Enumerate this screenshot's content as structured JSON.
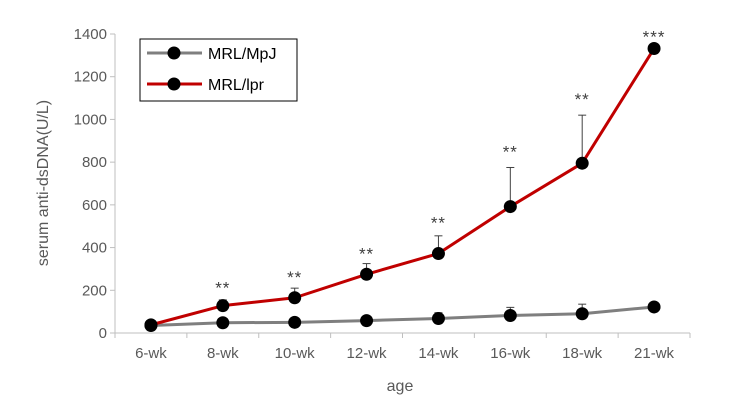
{
  "chart_data": {
    "type": "line",
    "title": "",
    "xlabel": "age",
    "ylabel": "serum anti-dsDNA(U/L)",
    "categories": [
      "6-wk",
      "8-wk",
      "10-wk",
      "12-wk",
      "14-wk",
      "16-wk",
      "18-wk",
      "21-wk"
    ],
    "ylim": [
      0,
      1400
    ],
    "yticks": [
      0,
      200,
      400,
      600,
      800,
      1000,
      1200,
      1400
    ],
    "grid": false,
    "legend_position": "top-left",
    "series": [
      {
        "name": "MRL/MpJ",
        "color": "#7f7f7f",
        "values": [
          35,
          48,
          50,
          58,
          68,
          82,
          90,
          122
        ],
        "error_upper": [
          null,
          null,
          null,
          75,
          95,
          120,
          135,
          null
        ]
      },
      {
        "name": "MRL/lpr",
        "color": "#c00000",
        "values": [
          38,
          128,
          165,
          275,
          372,
          592,
          795,
          1332
        ],
        "error_upper": [
          null,
          155,
          210,
          325,
          455,
          775,
          1020,
          null
        ]
      }
    ],
    "annotations": [
      {
        "category": "8-wk",
        "text": "**",
        "y": 232
      },
      {
        "category": "10-wk",
        "text": "**",
        "y": 281
      },
      {
        "category": "12-wk",
        "text": "**",
        "y": 392
      },
      {
        "category": "14-wk",
        "text": "**",
        "y": 535
      },
      {
        "category": "16-wk",
        "text": "**",
        "y": 868
      },
      {
        "category": "18-wk",
        "text": "**",
        "y": 1114
      },
      {
        "category": "21-wk",
        "text": "***",
        "y": 1408
      }
    ]
  }
}
